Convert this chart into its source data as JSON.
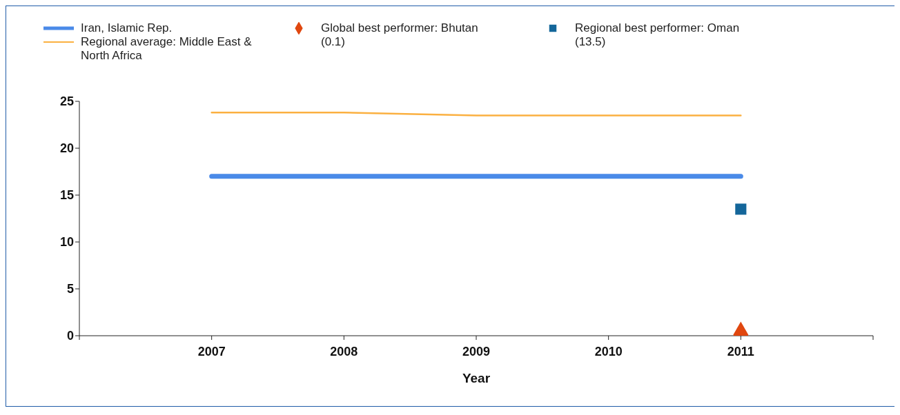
{
  "chart_data": {
    "type": "line",
    "xlabel": "Year",
    "xlim": [
      2006,
      2012
    ],
    "xticks": [
      {
        "value": 2006,
        "label": null
      },
      2007,
      2008,
      2009,
      2010,
      2011,
      {
        "value": 2012,
        "label": null
      }
    ],
    "ylim": [
      0,
      25
    ],
    "yticks": [
      0,
      5,
      10,
      15,
      20,
      25
    ],
    "grid": false,
    "legend": "top",
    "series": [
      {
        "name": "Iran, Islamic Rep.",
        "color": "#4a8ae8",
        "x": [
          2007,
          2008,
          2009,
          2010,
          2011
        ],
        "values": [
          17,
          17,
          17,
          17,
          17
        ],
        "marker": "none"
      },
      {
        "name": "Regional average: Middle East & North Africa",
        "color": "#fbb040",
        "x": [
          2007,
          2008,
          2009,
          2010,
          2011
        ],
        "values": [
          23.8,
          23.8,
          23.5,
          23.5,
          23.5
        ],
        "marker": "none"
      },
      {
        "name": "Global best performer: Bhutan (0.1)",
        "type": "scatter",
        "color": "#e0470f",
        "x": [
          2011
        ],
        "values": [
          0.1
        ],
        "marker": "diamond"
      },
      {
        "name": "Regional best performer: Oman (13.5)",
        "type": "scatter",
        "color": "#14669a",
        "x": [
          2011
        ],
        "values": [
          13.5
        ],
        "marker": "square"
      }
    ]
  }
}
